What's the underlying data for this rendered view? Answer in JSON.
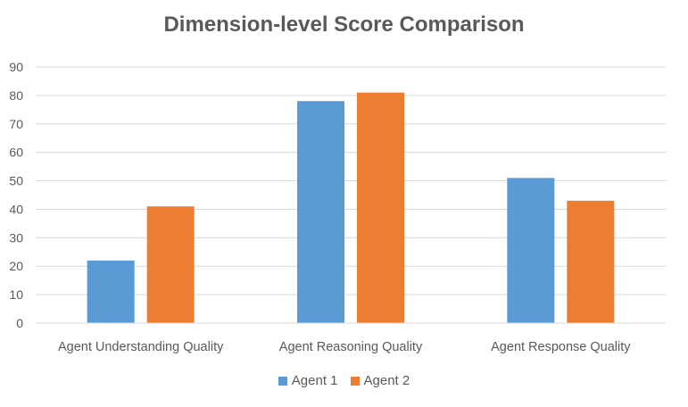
{
  "chart_data": {
    "type": "bar",
    "title": "Dimension-level Score Comparison",
    "xlabel": "",
    "ylabel": "",
    "categories": [
      "Agent Understanding Quality",
      "Agent Reasoning Quality",
      "Agent Response Quality"
    ],
    "series": [
      {
        "name": "Agent 1",
        "values": [
          22,
          78,
          51
        ],
        "color": "#5b9bd5"
      },
      {
        "name": "Agent 2",
        "values": [
          41,
          81,
          43
        ],
        "color": "#ed7d31"
      }
    ],
    "ylim": [
      0,
      90
    ],
    "yticks": [
      0,
      10,
      20,
      30,
      40,
      50,
      60,
      70,
      80,
      90
    ],
    "grid": true,
    "legend_position": "bottom"
  }
}
